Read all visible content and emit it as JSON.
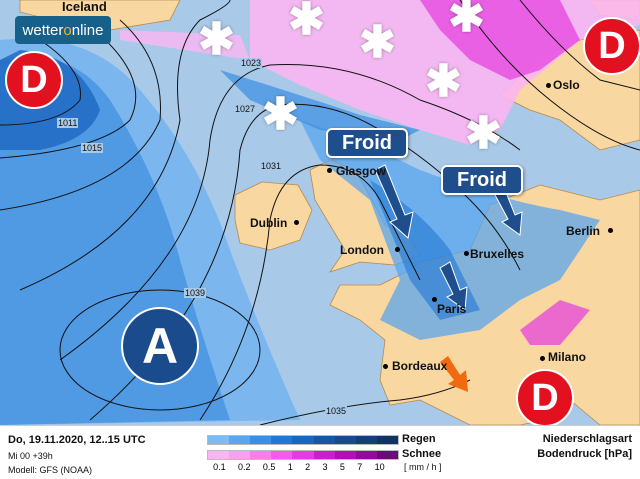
{
  "brand": {
    "logo_pre": "wetter",
    "logo_o": "o",
    "logo_post": "nline"
  },
  "cities": {
    "iceland": "Iceland",
    "glasgow": "Glasgow",
    "dublin": "Dublin",
    "london": "London",
    "bruxelles": "Bruxelles",
    "paris": "Paris",
    "berlin": "Berlin",
    "oslo": "Oslo",
    "milano": "Milano",
    "bordeaux": "Bordeaux"
  },
  "isobars": {
    "i1011": "1011",
    "i1015": "1015",
    "i1023": "1023",
    "i1027": "1027",
    "i1031": "1031",
    "i1039": "1039",
    "i1035": "1035"
  },
  "pressure_systems": {
    "low": "D",
    "high": "A"
  },
  "labels": {
    "froid": "Froid"
  },
  "icons": [
    "snowflake-icon",
    "cold-arrow-icon",
    "warm-arrow-icon"
  ],
  "colors": {
    "low": "#e3101f",
    "high": "#1a4b8c",
    "froid_box": "#1f4e8c",
    "land": "#f9d7a0",
    "sea": "#a9c9e8",
    "warm_arrow": "#f26a10"
  },
  "legend": {
    "date": "Do, 19.11.2020, 12..15 UTC",
    "run": "Mi 00 +39h",
    "model": "Modell: GFS (NOAA)",
    "rain": "Regen",
    "snow": "Schnee",
    "unit": "[ mm / h ]",
    "title1": "Niederschlagsart",
    "title2": "Bodendruck [hPa]",
    "ticks": [
      "0.1",
      "0.2",
      "0.5",
      "1",
      "2",
      "3",
      "5",
      "7",
      "10"
    ],
    "rain_colors": [
      "#7fbcf4",
      "#5aa6ee",
      "#3a8fe4",
      "#2277d4",
      "#1866bd",
      "#1756a3",
      "#164a8c",
      "#133f77",
      "#0f3462"
    ],
    "snow_colors": [
      "#fbb6f2",
      "#f99ff0",
      "#f67fec",
      "#f25ce8",
      "#e63be0",
      "#cc1fcc",
      "#b010b6",
      "#8f0d98",
      "#6e0a78"
    ]
  }
}
